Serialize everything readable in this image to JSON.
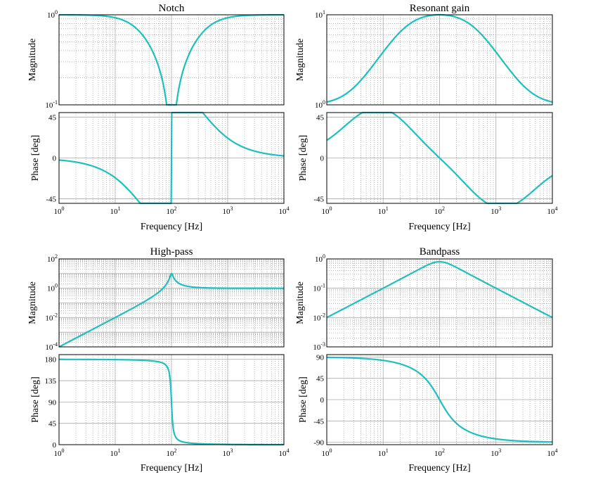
{
  "colors": {
    "curve": "#1ebfbf",
    "frame": "#000000",
    "major_grid": "#aaaaaa",
    "minor_grid": "#888888"
  },
  "chart_data": [
    {
      "type": "line",
      "title": "Notch",
      "filter": "notch",
      "x": {
        "label": "Frequency [Hz]",
        "scale": "log",
        "range": [
          1,
          10000
        ],
        "ticks": [
          "0",
          "1",
          "2",
          "3",
          "4"
        ]
      },
      "magnitude": {
        "label": "Magnitude",
        "scale": "log",
        "range": [
          0.1,
          1
        ],
        "ticks": [
          "-1",
          "0"
        ]
      },
      "phase": {
        "label": "Phase [deg]",
        "range": [
          -50,
          50
        ],
        "ticks": [
          "45",
          "0",
          "-45"
        ]
      },
      "series": {
        "center_frequency_hz": 100
      }
    },
    {
      "type": "line",
      "title": "Resonant gain",
      "filter": "resonant",
      "x": {
        "label": "Frequency [Hz]",
        "scale": "log",
        "range": [
          1,
          10000
        ],
        "ticks": [
          "0",
          "1",
          "2",
          "3",
          "4"
        ]
      },
      "magnitude": {
        "label": "Magnitude",
        "scale": "log",
        "range": [
          1,
          10
        ],
        "ticks": [
          "0",
          "1"
        ]
      },
      "phase": {
        "label": "Phase [deg]",
        "range": [
          -50,
          50
        ],
        "ticks": [
          "45",
          "0",
          "-45"
        ]
      },
      "series": {
        "center_frequency_hz": 100
      }
    },
    {
      "type": "line",
      "title": "High-pass",
      "filter": "highpass",
      "x": {
        "label": "Frequency [Hz]",
        "scale": "log",
        "range": [
          1,
          10000
        ],
        "ticks": [
          "0",
          "1",
          "2",
          "3",
          "4"
        ]
      },
      "magnitude": {
        "label": "Magnitude",
        "scale": "log",
        "range": [
          0.0001,
          100
        ],
        "ticks": [
          "2",
          "0",
          "-2",
          "-4"
        ]
      },
      "phase": {
        "label": "Phase [deg]",
        "range": [
          0,
          190
        ],
        "ticks": [
          "180",
          "135",
          "90",
          "45",
          "0"
        ]
      },
      "series": {
        "center_frequency_hz": 100
      }
    },
    {
      "type": "line",
      "title": "Bandpass",
      "filter": "bandpass",
      "x": {
        "label": "Frequency [Hz]",
        "scale": "log",
        "range": [
          1,
          10000
        ],
        "ticks": [
          "0",
          "1",
          "2",
          "3",
          "4"
        ]
      },
      "magnitude": {
        "label": "Magnitude",
        "scale": "log",
        "range": [
          0.001,
          1
        ],
        "ticks": [
          "0",
          "-1",
          "-2",
          "-3"
        ]
      },
      "phase": {
        "label": "Phase [deg]",
        "range": [
          -95,
          95
        ],
        "ticks": [
          "90",
          "45",
          "0",
          "-45",
          "-90"
        ]
      },
      "series": {
        "center_frequency_hz": 100
      }
    }
  ]
}
